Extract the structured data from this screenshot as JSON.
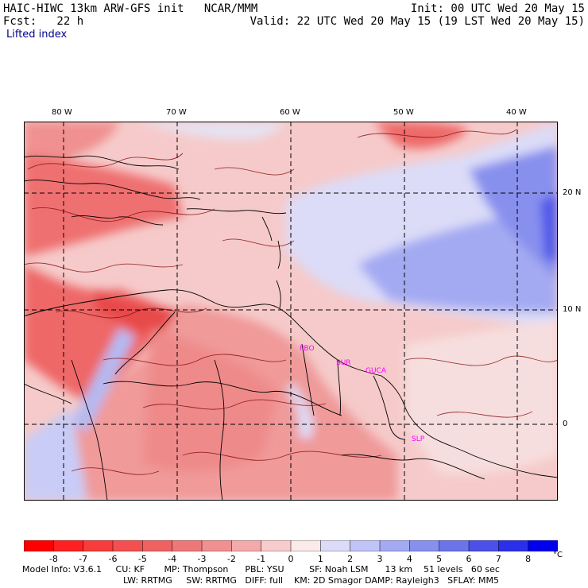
{
  "header": {
    "line1_left": "HAIC-HIWC 13km ARW-GFS init   NCAR/MMM",
    "line2_left": "Fcst:   22 h",
    "line1_right": "Init: 00 UTC Wed 20 May 15",
    "line2_right": "Valid: 22 UTC Wed 20 May 15 (19 LST Wed 20 May 15)",
    "field": "Lifted index"
  },
  "map": {
    "lon_labels": [
      "80 W",
      "70 W",
      "60 W",
      "50 W",
      "40 W"
    ],
    "lat_labels": [
      "20 N",
      "10 N",
      "0"
    ],
    "city_labels": [
      "PBO",
      "SUR",
      "GUCA",
      "SLP"
    ],
    "colors": {
      "strong_negative": "#e83c3c",
      "moderate_negative": "#f07a7a",
      "weak_negative": "#f8c0c0",
      "neutral": "#f8f0f0",
      "weak_positive": "#c8d0f8",
      "moderate_positive": "#8a92ee",
      "contour": "#7a0000",
      "coast": "#000000"
    }
  },
  "colorbar": {
    "labels": [
      "-8",
      "-7",
      "-6",
      "-5",
      "-4",
      "-3",
      "-2",
      "-1",
      "0",
      "1",
      "2",
      "3",
      "4",
      "5",
      "6",
      "7",
      "8"
    ],
    "unit": "°C",
    "colors": [
      "#ff0000",
      "#ff2020",
      "#f83b3b",
      "#f45050",
      "#f06262",
      "#ee7878",
      "#f09090",
      "#f4aaaa",
      "#f8cccc",
      "#fbeaea",
      "#dcdcf8",
      "#c0c4f6",
      "#a4aaf2",
      "#8890ee",
      "#6c74ea",
      "#4a50e8",
      "#2a30ea",
      "#0000ee"
    ]
  },
  "footer": {
    "line1": "Model Info: V3.6.1     CU: KF       MP: Thompson      PBL: YSU         SF: Noah LSM      13 km    51 levels   60 sec",
    "line2": "LW: RRTMG     SW: RRTMG   DIFF: full    KM: 2D Smagor DAMP: Rayleigh3   SFLAY: MM5"
  }
}
